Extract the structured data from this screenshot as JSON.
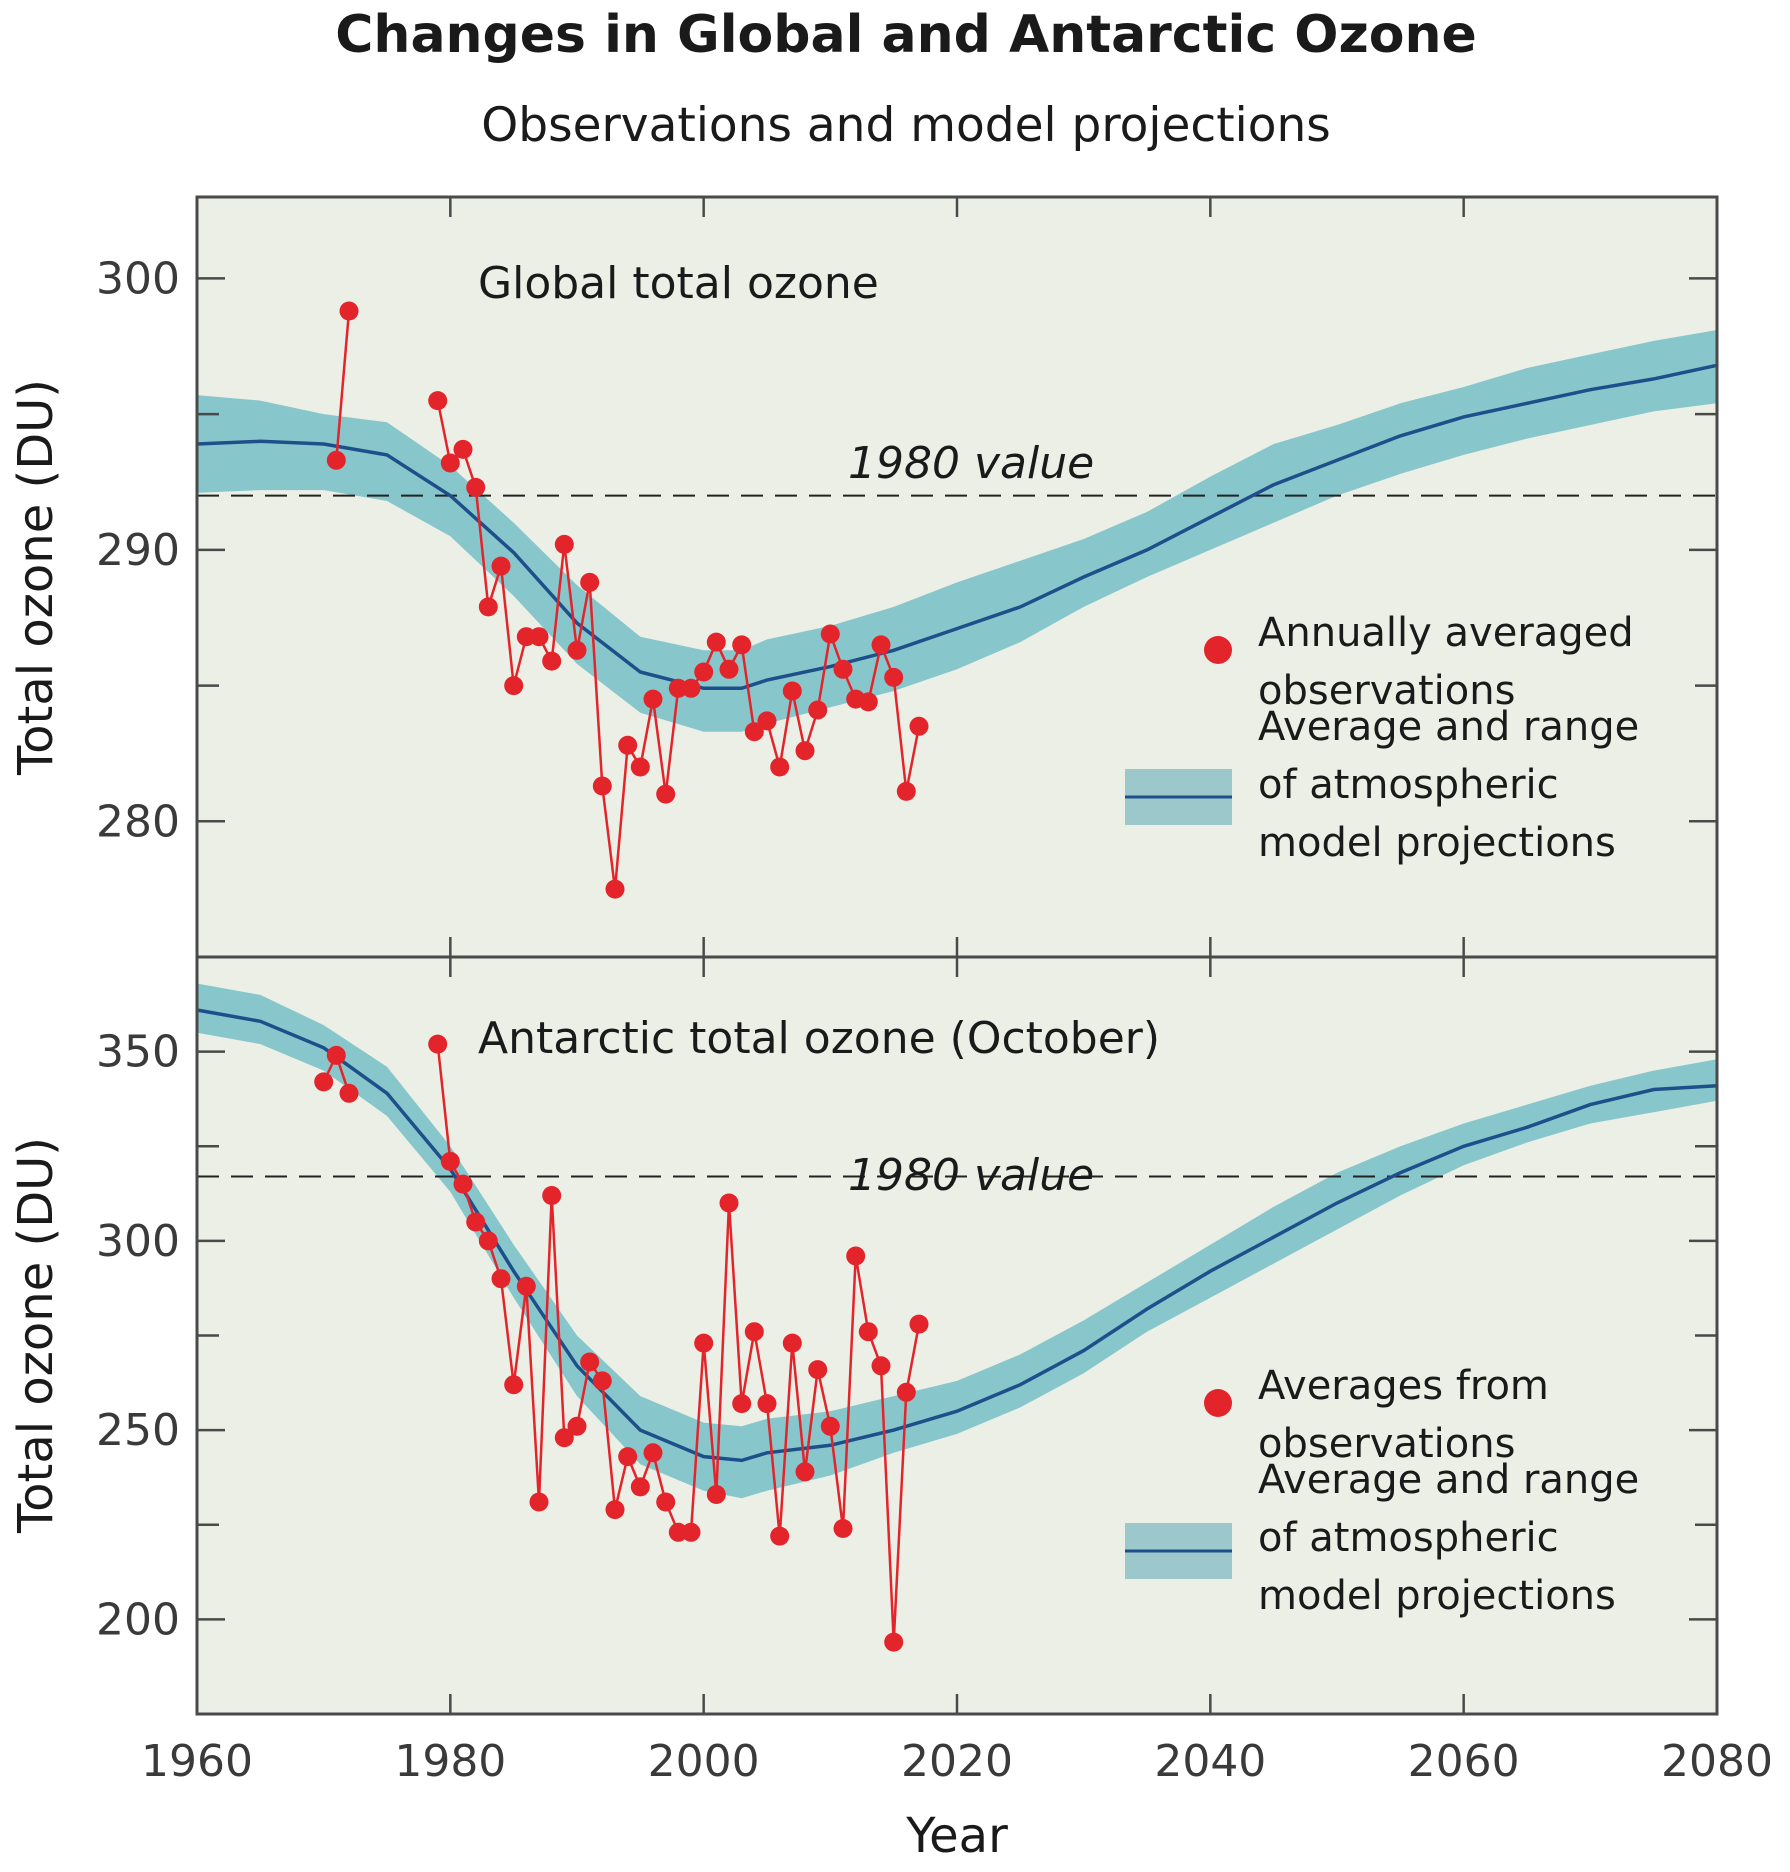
{
  "title": "Changes in Global and Antarctic Ozone",
  "subtitle": "Observations and model projections",
  "colors": {
    "panel_bg": "#ecefe6",
    "band": "#87c7cc",
    "mean_line": "#1f4f8a",
    "observations": "#e3242b",
    "frame": "#4a4a4a"
  },
  "chart_data": [
    {
      "type": "line",
      "title": "Global total ozone",
      "xlabel": "Year",
      "ylabel": "Total ozone (DU)",
      "xlim": [
        1960,
        2080
      ],
      "ylim": [
        275,
        303
      ],
      "x_ticks": [
        1960,
        1980,
        2000,
        2020,
        2040,
        2060,
        2080
      ],
      "y_ticks": [
        280,
        290,
        300
      ],
      "reference_line": {
        "label": "1980 value",
        "y": 292
      },
      "legend": [
        {
          "label": "Annually averaged observations",
          "lines": [
            "Annually averaged",
            "observations"
          ],
          "kind": "marker"
        },
        {
          "label": "Average and range of atmospheric model projections",
          "lines": [
            "Average and range",
            "of atmospheric",
            "model projections"
          ],
          "kind": "band"
        }
      ],
      "series": [
        {
          "name": "Annually averaged observations",
          "kind": "observations",
          "x": [
            1971,
            1972,
            1979,
            1980,
            1981,
            1982,
            1983,
            1984,
            1985,
            1986,
            1987,
            1988,
            1989,
            1990,
            1991,
            1992,
            1993,
            1994,
            1995,
            1996,
            1997,
            1998,
            1999,
            2000,
            2001,
            2002,
            2003,
            2004,
            2005,
            2006,
            2007,
            2008,
            2009,
            2010,
            2011,
            2012,
            2013,
            2014,
            2015,
            2016,
            2017
          ],
          "y": [
            293.3,
            298.8,
            295.5,
            293.2,
            293.7,
            292.3,
            287.9,
            289.4,
            285.0,
            286.8,
            286.8,
            285.9,
            290.2,
            286.3,
            288.8,
            281.3,
            277.5,
            282.8,
            282.0,
            284.5,
            281.0,
            284.9,
            284.9,
            285.5,
            286.6,
            285.6,
            286.5,
            283.3,
            283.7,
            282.0,
            284.8,
            282.6,
            284.1,
            286.9,
            285.6,
            284.5,
            284.4,
            286.5,
            285.3,
            281.1,
            283.5
          ]
        },
        {
          "name": "Average of atmospheric model projections",
          "kind": "model",
          "x": [
            1960,
            1965,
            1970,
            1975,
            1980,
            1985,
            1990,
            1995,
            2000,
            2003,
            2005,
            2010,
            2015,
            2020,
            2025,
            2030,
            2035,
            2040,
            2045,
            2050,
            2055,
            2060,
            2065,
            2070,
            2075,
            2080
          ],
          "y": [
            293.9,
            294.0,
            293.9,
            293.5,
            292.0,
            289.9,
            287.3,
            285.5,
            284.9,
            284.9,
            285.2,
            285.7,
            286.3,
            287.1,
            287.9,
            289.0,
            290.0,
            291.2,
            292.4,
            293.3,
            294.2,
            294.9,
            295.4,
            295.9,
            296.3,
            296.8
          ],
          "lower": [
            292.1,
            292.2,
            292.2,
            291.8,
            290.5,
            288.3,
            285.8,
            284.0,
            283.3,
            283.3,
            283.6,
            284.2,
            284.8,
            285.6,
            286.6,
            287.9,
            289.0,
            290.0,
            291.0,
            292.0,
            292.8,
            293.5,
            294.1,
            294.6,
            295.1,
            295.4
          ],
          "upper": [
            295.7,
            295.5,
            295.0,
            294.7,
            293.1,
            291.0,
            288.7,
            286.8,
            286.3,
            286.3,
            286.7,
            287.2,
            287.9,
            288.8,
            289.6,
            290.4,
            291.4,
            292.7,
            293.9,
            294.6,
            295.4,
            296.0,
            296.7,
            297.2,
            297.7,
            298.1
          ]
        }
      ]
    },
    {
      "type": "line",
      "title": "Antarctic total ozone (October)",
      "xlabel": "Year",
      "ylabel": "Total ozone (DU)",
      "xlim": [
        1960,
        2080
      ],
      "ylim": [
        175,
        375
      ],
      "x_ticks": [
        1960,
        1980,
        2000,
        2020,
        2040,
        2060,
        2080
      ],
      "y_ticks": [
        200,
        250,
        300,
        350
      ],
      "reference_line": {
        "label": "1980 value",
        "y": 317
      },
      "legend": [
        {
          "label": "Averages from observations",
          "lines": [
            "Averages from",
            "observations"
          ],
          "kind": "marker"
        },
        {
          "label": "Average and range of atmospheric model projections",
          "lines": [
            "Average and range",
            "of atmospheric",
            "model projections"
          ],
          "kind": "band"
        }
      ],
      "series": [
        {
          "name": "Averages from observations",
          "kind": "observations",
          "x": [
            1970,
            1971,
            1972,
            1979,
            1980,
            1981,
            1982,
            1983,
            1984,
            1985,
            1986,
            1987,
            1988,
            1989,
            1990,
            1991,
            1992,
            1993,
            1994,
            1995,
            1996,
            1997,
            1998,
            1999,
            2000,
            2001,
            2002,
            2003,
            2004,
            2005,
            2006,
            2007,
            2008,
            2009,
            2010,
            2011,
            2012,
            2013,
            2014,
            2015,
            2016,
            2017
          ],
          "y": [
            342,
            349,
            339,
            352,
            321,
            315,
            305,
            300,
            290,
            262,
            288,
            231,
            312,
            248,
            251,
            268,
            263,
            229,
            243,
            235,
            244,
            231,
            223,
            223,
            273,
            233,
            310,
            257,
            276,
            257,
            222,
            273,
            239,
            266,
            251,
            224,
            296,
            276,
            267,
            194,
            260,
            278
          ]
        },
        {
          "name": "Average of atmospheric model projections",
          "kind": "model",
          "x": [
            1960,
            1965,
            1970,
            1975,
            1980,
            1985,
            1990,
            1995,
            2000,
            2003,
            2005,
            2010,
            2015,
            2020,
            2025,
            2030,
            2035,
            2040,
            2045,
            2050,
            2055,
            2060,
            2065,
            2070,
            2075,
            2080
          ],
          "y": [
            361,
            358,
            351,
            339,
            319,
            292,
            267,
            250,
            243,
            242,
            244,
            246,
            250,
            255,
            262,
            271,
            282,
            292,
            301,
            310,
            318,
            325,
            330,
            336,
            340,
            341
          ],
          "lower": [
            355,
            352,
            345,
            333,
            313,
            285,
            259,
            241,
            234,
            232,
            234,
            238,
            244,
            249,
            256,
            265,
            276,
            285,
            294,
            303,
            312,
            320,
            326,
            331,
            334,
            337
          ],
          "upper": [
            368,
            365,
            357,
            346,
            325,
            299,
            275,
            259,
            252,
            251,
            253,
            255,
            259,
            263,
            270,
            279,
            289,
            299,
            309,
            318,
            325,
            331,
            336,
            341,
            345,
            348
          ]
        }
      ]
    }
  ]
}
